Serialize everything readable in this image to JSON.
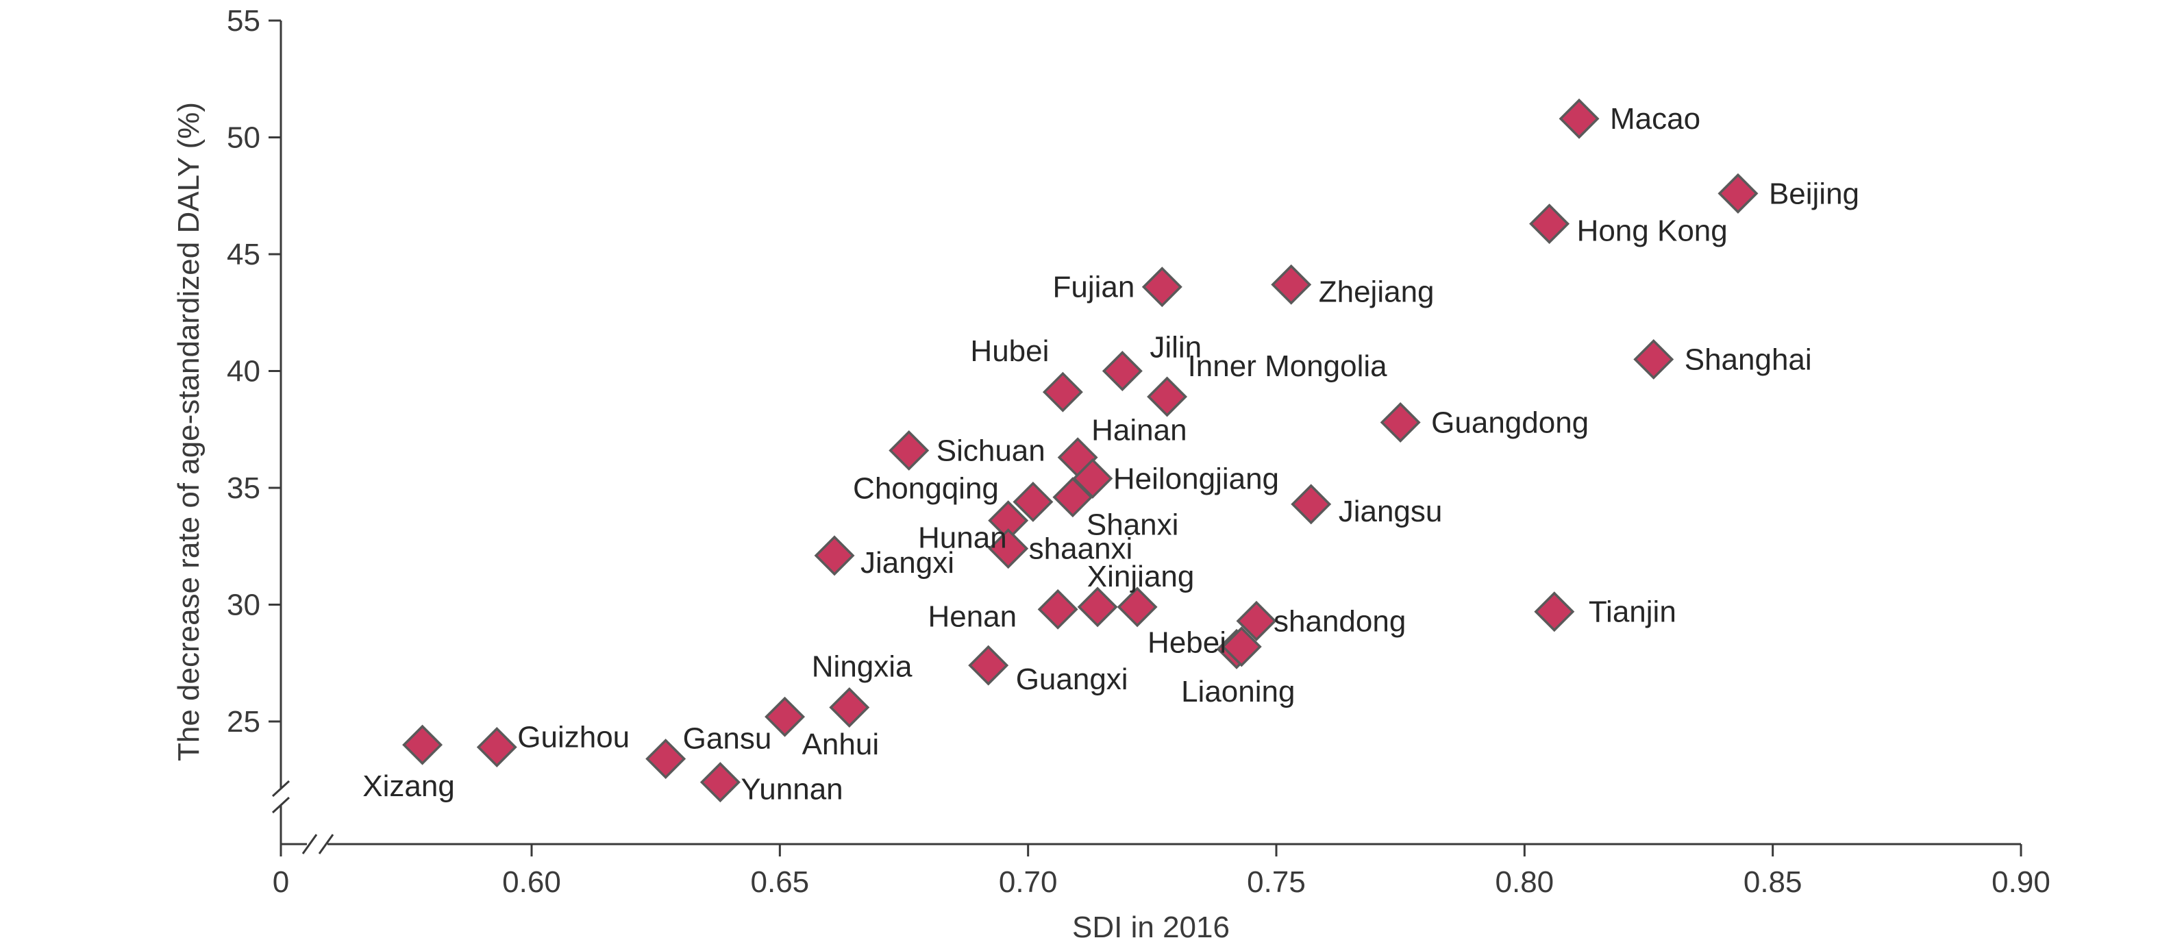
{
  "chart_data": {
    "type": "scatter",
    "xlabel": "SDI in 2016",
    "ylabel": "The decrease rate of age-standardized DALY (%)",
    "x_ticks": [
      "0",
      "0.60",
      "0.65",
      "0.70",
      "0.75",
      "0.80",
      "0.85",
      "0.90"
    ],
    "y_ticks": [
      "25",
      "30",
      "35",
      "40",
      "45",
      "50",
      "55"
    ],
    "xlim": [
      0.55,
      0.9
    ],
    "ylim": [
      22,
      55
    ],
    "axis_break": true,
    "grid": false,
    "legend": "none",
    "marker": "diamond",
    "marker_color": "#c8385e",
    "points": [
      {
        "label": "Macao",
        "x": 0.811,
        "y": 50.8
      },
      {
        "label": "Beijing",
        "x": 0.843,
        "y": 47.6
      },
      {
        "label": "Hong Kong",
        "x": 0.805,
        "y": 46.3
      },
      {
        "label": "Fujian",
        "x": 0.727,
        "y": 43.6
      },
      {
        "label": "Zhejiang",
        "x": 0.753,
        "y": 43.7
      },
      {
        "label": "Shanghai",
        "x": 0.826,
        "y": 40.5
      },
      {
        "label": "Jilin",
        "x": 0.719,
        "y": 40.0
      },
      {
        "label": "Hubei",
        "x": 0.707,
        "y": 39.1
      },
      {
        "label": "Inner Mongolia",
        "x": 0.728,
        "y": 38.9
      },
      {
        "label": "Guangdong",
        "x": 0.775,
        "y": 37.8
      },
      {
        "label": "Sichuan",
        "x": 0.676,
        "y": 36.6
      },
      {
        "label": "Hainan",
        "x": 0.71,
        "y": 36.3
      },
      {
        "label": "Heilongjiang",
        "x": 0.713,
        "y": 35.4
      },
      {
        "label": "Chongqing",
        "x": 0.701,
        "y": 34.4
      },
      {
        "label": "Shanxi",
        "x": 0.709,
        "y": 34.6
      },
      {
        "label": "Jiangsu",
        "x": 0.757,
        "y": 34.3
      },
      {
        "label": "Hunan",
        "x": 0.696,
        "y": 33.6
      },
      {
        "label": "shaanxi",
        "x": 0.696,
        "y": 32.4
      },
      {
        "label": "Jiangxi",
        "x": 0.661,
        "y": 32.1
      },
      {
        "label": "Xinjiang",
        "x": 0.722,
        "y": 29.9
      },
      {
        "label": "Henan",
        "x": 0.706,
        "y": 29.8
      },
      {
        "label": "",
        "x": 0.714,
        "y": 29.9
      },
      {
        "label": "shandong",
        "x": 0.746,
        "y": 29.3
      },
      {
        "label": "Tianjin",
        "x": 0.806,
        "y": 29.7
      },
      {
        "label": "Hebei",
        "x": 0.742,
        "y": 28.1
      },
      {
        "label": "Liaoning",
        "x": 0.743,
        "y": 28.2
      },
      {
        "label": "Guangxi",
        "x": 0.692,
        "y": 27.4
      },
      {
        "label": "Ningxia",
        "x": 0.664,
        "y": 25.6
      },
      {
        "label": "Anhui",
        "x": 0.651,
        "y": 25.2
      },
      {
        "label": "Xizang",
        "x": 0.578,
        "y": 24.0
      },
      {
        "label": "Guizhou",
        "x": 0.593,
        "y": 23.9
      },
      {
        "label": "Gansu",
        "x": 0.627,
        "y": 23.4
      },
      {
        "label": "Yunnan",
        "x": 0.638,
        "y": 22.4
      }
    ]
  }
}
